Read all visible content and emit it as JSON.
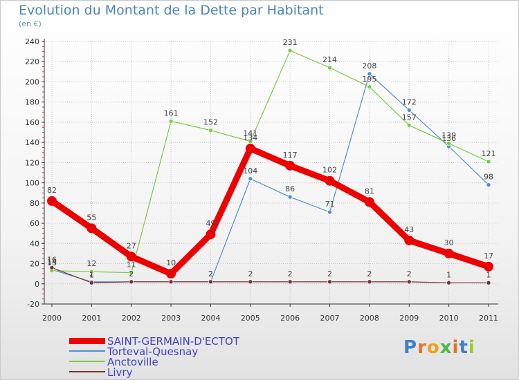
{
  "title": "Evolution du Montant de la Dette par Habitant",
  "subtitle": "(en €)",
  "logo_text": "Proxiti",
  "chart_data": {
    "type": "line",
    "title": "Evolution du Montant de la Dette par Habitant",
    "ylabel": "(en €)",
    "xlabel": "",
    "ylim": [
      -20,
      240
    ],
    "yticks": [
      -20,
      0,
      20,
      40,
      60,
      80,
      100,
      120,
      140,
      160,
      180,
      200,
      220,
      240
    ],
    "categories": [
      "2000",
      "2001",
      "2002",
      "2003",
      "2004",
      "2005",
      "2006",
      "2007",
      "2008",
      "2009",
      "2010",
      "2011"
    ],
    "series": [
      {
        "name": "Torteval-Quesnay",
        "color": "#4f8fcc",
        "values": [
          14,
          2,
          2,
          2,
          2,
          104,
          86,
          71,
          208,
          172,
          136,
          98
        ]
      },
      {
        "name": "Anctoville",
        "color": "#77cc44",
        "values": [
          13,
          12,
          11,
          161,
          152,
          141,
          231,
          214,
          195,
          157,
          139,
          121
        ]
      },
      {
        "name": "Livry",
        "color": "#7a2e36",
        "values": [
          16,
          1,
          2,
          2,
          2,
          2,
          2,
          2,
          2,
          2,
          1,
          1
        ]
      },
      {
        "name": "SAINT-GERMAIN-D'ECTOT",
        "color": "#ee0000",
        "values": [
          82,
          55,
          27,
          10,
          49,
          134,
          117,
          102,
          81,
          43,
          30,
          17
        ]
      }
    ],
    "legend": [
      "SAINT-GERMAIN-D'ECTOT",
      "Torteval-Quesnay",
      "Anctoville",
      "Livry"
    ]
  }
}
